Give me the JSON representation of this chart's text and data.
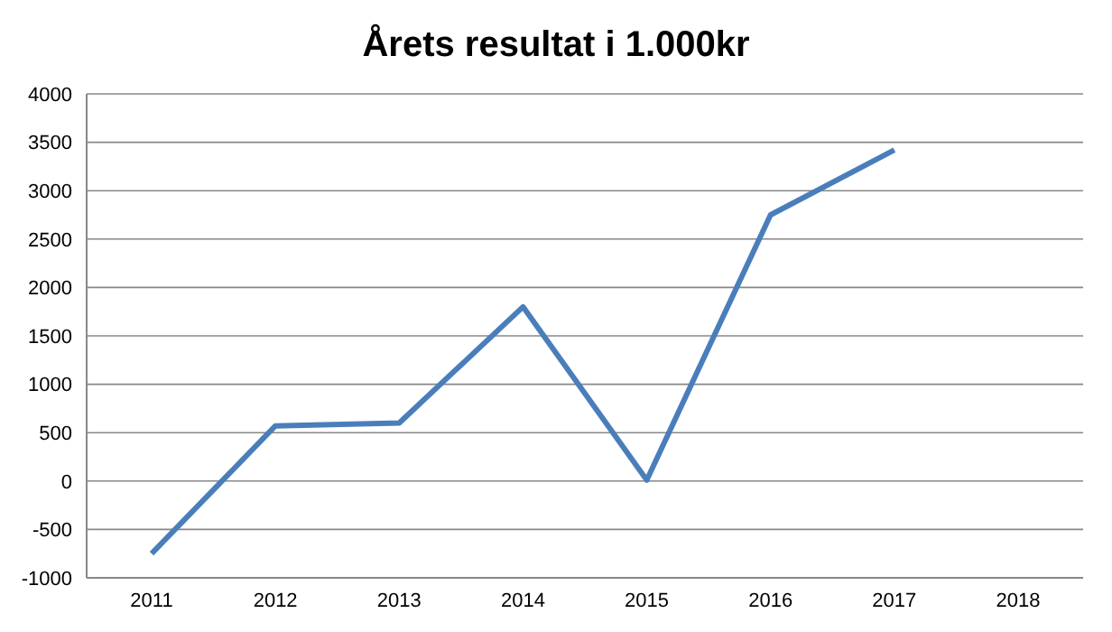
{
  "chart_data": {
    "type": "line",
    "title": "Årets resultat i 1.000kr",
    "categories": [
      "2011",
      "2012",
      "2013",
      "2014",
      "2015",
      "2016",
      "2017",
      "2018"
    ],
    "series": [
      {
        "color": "#4a7ebb",
        "values": [
          -750,
          570,
          600,
          1800,
          10,
          2750,
          3420,
          null
        ]
      }
    ],
    "ylim": [
      -1000,
      4000
    ],
    "yticks": [
      -1000,
      -500,
      0,
      500,
      1000,
      1500,
      2000,
      2500,
      3000,
      3500,
      4000
    ],
    "grid": "y",
    "legend": false,
    "marker": "none",
    "line_style": "solid"
  }
}
